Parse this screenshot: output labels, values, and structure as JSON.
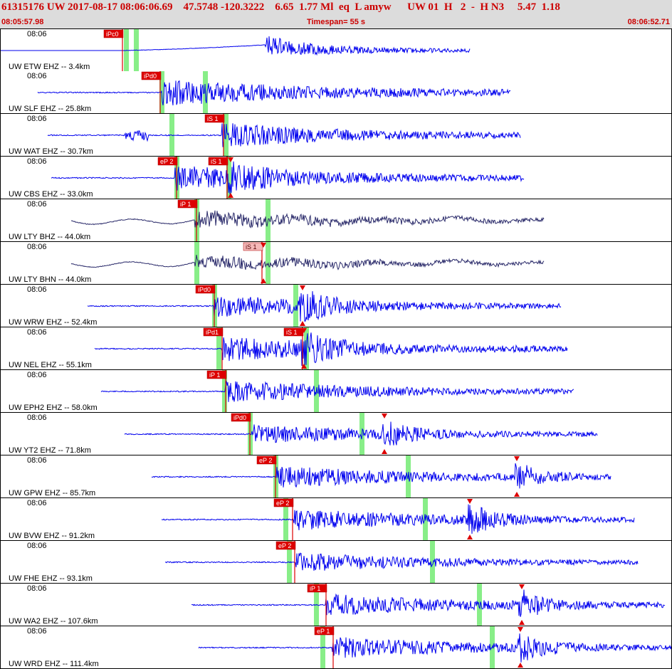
{
  "header": {
    "summary": "61315176 UW 2017-08-17 08:06:06.69    47.5748 -120.3222    6.65  1.77 Ml  eq  L amyw      UW 01  H   2  -  H N3     5.47  1.18",
    "start_time": "08:05:57.98",
    "timespan": "Timespan=  55 s",
    "end_time": "08:06:52.71"
  },
  "colors": {
    "trace_blue": "#0000ee",
    "trace_dark": "#2a2a6a",
    "pick_red": "#dd0000",
    "pick_pink": "#f4b8b8",
    "theory_green": "#88ee88"
  },
  "traces": [
    {
      "time": "08:06",
      "station": "UW ETW EHZ -- 3.4km",
      "color": "blue",
      "onset": 0.395,
      "end": 0.7,
      "style": "ramp",
      "amp": 0.9,
      "picks": [
        {
          "label": "iPc0",
          "pos": 0.182,
          "kind": "red"
        }
      ],
      "markers": [],
      "theory": [
        0.187,
        0.202
      ]
    },
    {
      "time": "08:06",
      "station": "UW SLF EHZ -- 25.8km",
      "color": "blue",
      "onset": 0.24,
      "end": 0.76,
      "amp": 1.0,
      "picks": [
        {
          "label": "iPd0",
          "pos": 0.238,
          "kind": "red"
        }
      ],
      "markers": [],
      "theory": [
        0.24,
        0.305
      ]
    },
    {
      "time": "08:06",
      "station": "UW WAT EHZ -- 30.7km",
      "color": "blue",
      "onset": 0.33,
      "end": 0.775,
      "amp": 0.9,
      "pre": [
        0.185,
        0.22
      ],
      "picks": [
        {
          "label": "iS 1",
          "pos": 0.332,
          "kind": "red"
        }
      ],
      "markers": [],
      "theory": [
        0.255,
        0.335
      ]
    },
    {
      "time": "08:06",
      "station": "UW CBS EHZ -- 33.0km",
      "color": "blue",
      "onset": 0.26,
      "end": 0.78,
      "amp": 0.9,
      "picks": [
        {
          "label": "eP 2",
          "pos": 0.262,
          "kind": "red"
        },
        {
          "label": "iS 1",
          "pos": 0.338,
          "kind": "red"
        }
      ],
      "markers": [
        0.343
      ],
      "theory": [
        0.262,
        0.34
      ]
    },
    {
      "time": "08:06",
      "station": "UW LTY BHZ -- 44.0km",
      "color": "dark",
      "onset": 0.29,
      "end": 0.81,
      "style": "wavy",
      "amp": 0.7,
      "picks": [
        {
          "label": "iP 1",
          "pos": 0.292,
          "kind": "red"
        }
      ],
      "markers": [],
      "theory": [
        0.292,
        0.398
      ]
    },
    {
      "time": "08:06",
      "station": "UW LTY BHN -- 44.0km",
      "color": "dark",
      "onset": 0.29,
      "end": 0.81,
      "style": "wavy",
      "amp": 0.6,
      "picks": [
        {
          "label": "iS 1",
          "pos": 0.39,
          "kind": "pink"
        }
      ],
      "markers": [
        0.392
      ],
      "theory": [
        0.292,
        0.398
      ]
    },
    {
      "time": "08:06",
      "station": "UW WRW EHZ -- 52.4km",
      "color": "blue",
      "onset": 0.318,
      "end": 0.835,
      "amp": 0.8,
      "picks": [
        {
          "label": "iPd0",
          "pos": 0.318,
          "kind": "red"
        }
      ],
      "markers": [
        0.45
      ],
      "theory": [
        0.318,
        0.44
      ]
    },
    {
      "time": "08:06",
      "station": "UW NEL EHZ -- 55.1km",
      "color": "blue",
      "onset": 0.33,
      "end": 0.845,
      "amp": 0.9,
      "picks": [
        {
          "label": "iPd1",
          "pos": 0.33,
          "kind": "red"
        },
        {
          "label": "iS 1",
          "pos": 0.45,
          "kind": "red"
        }
      ],
      "markers": [
        0.452
      ],
      "theory": [
        0.325,
        0.455
      ]
    },
    {
      "time": "08:06",
      "station": "UW EPH2 EHZ -- 58.0km",
      "color": "blue",
      "onset": 0.335,
      "end": 0.855,
      "amp": 0.8,
      "picks": [
        {
          "label": "iP 1",
          "pos": 0.335,
          "kind": "red"
        }
      ],
      "markers": [],
      "theory": [
        0.333,
        0.47
      ]
    },
    {
      "time": "08:06",
      "station": "UW YT2 EHZ -- 71.8km",
      "color": "blue",
      "onset": 0.375,
      "end": 0.89,
      "amp": 0.7,
      "picks": [
        {
          "label": "iPd0",
          "pos": 0.372,
          "kind": "red"
        }
      ],
      "markers": [
        0.572
      ],
      "theory": [
        0.372,
        0.538
      ]
    },
    {
      "time": "08:06",
      "station": "UW GPW EHZ -- 85.7km",
      "color": "blue",
      "onset": 0.412,
      "end": 0.91,
      "amp": 0.8,
      "picks": [
        {
          "label": "eP 2",
          "pos": 0.41,
          "kind": "red"
        }
      ],
      "markers": [
        0.77
      ],
      "theory": [
        0.41,
        0.607
      ]
    },
    {
      "time": "08:06",
      "station": "UW BVW EHZ -- 91.2km",
      "color": "blue",
      "onset": 0.435,
      "end": 0.945,
      "amp": 0.8,
      "picks": [
        {
          "label": "eP 2",
          "pos": 0.435,
          "kind": "red"
        }
      ],
      "markers": [
        0.7
      ],
      "theory": [
        0.425,
        0.633
      ]
    },
    {
      "time": "08:06",
      "station": "UW FHE EHZ -- 93.1km",
      "color": "blue",
      "onset": 0.44,
      "end": 0.95,
      "amp": 0.7,
      "picks": [
        {
          "label": "eP 2",
          "pos": 0.438,
          "kind": "red"
        }
      ],
      "markers": [],
      "theory": [
        0.43,
        0.643
      ]
    },
    {
      "time": "08:06",
      "station": "UW WA2 EHZ -- 107.6km",
      "color": "blue",
      "onset": 0.485,
      "end": 0.99,
      "amp": 0.8,
      "picks": [
        {
          "label": "iP 1",
          "pos": 0.485,
          "kind": "red"
        }
      ],
      "markers": [
        0.777
      ],
      "theory": [
        0.47,
        0.713
      ]
    },
    {
      "time": "08:06",
      "station": "UW WRD EHZ -- 111.4km",
      "color": "blue",
      "onset": 0.495,
      "end": 1.0,
      "amp": 0.8,
      "picks": [
        {
          "label": "eP 1",
          "pos": 0.496,
          "kind": "red"
        }
      ],
      "markers": [
        0.775
      ],
      "theory": [
        0.48,
        0.733
      ]
    }
  ]
}
